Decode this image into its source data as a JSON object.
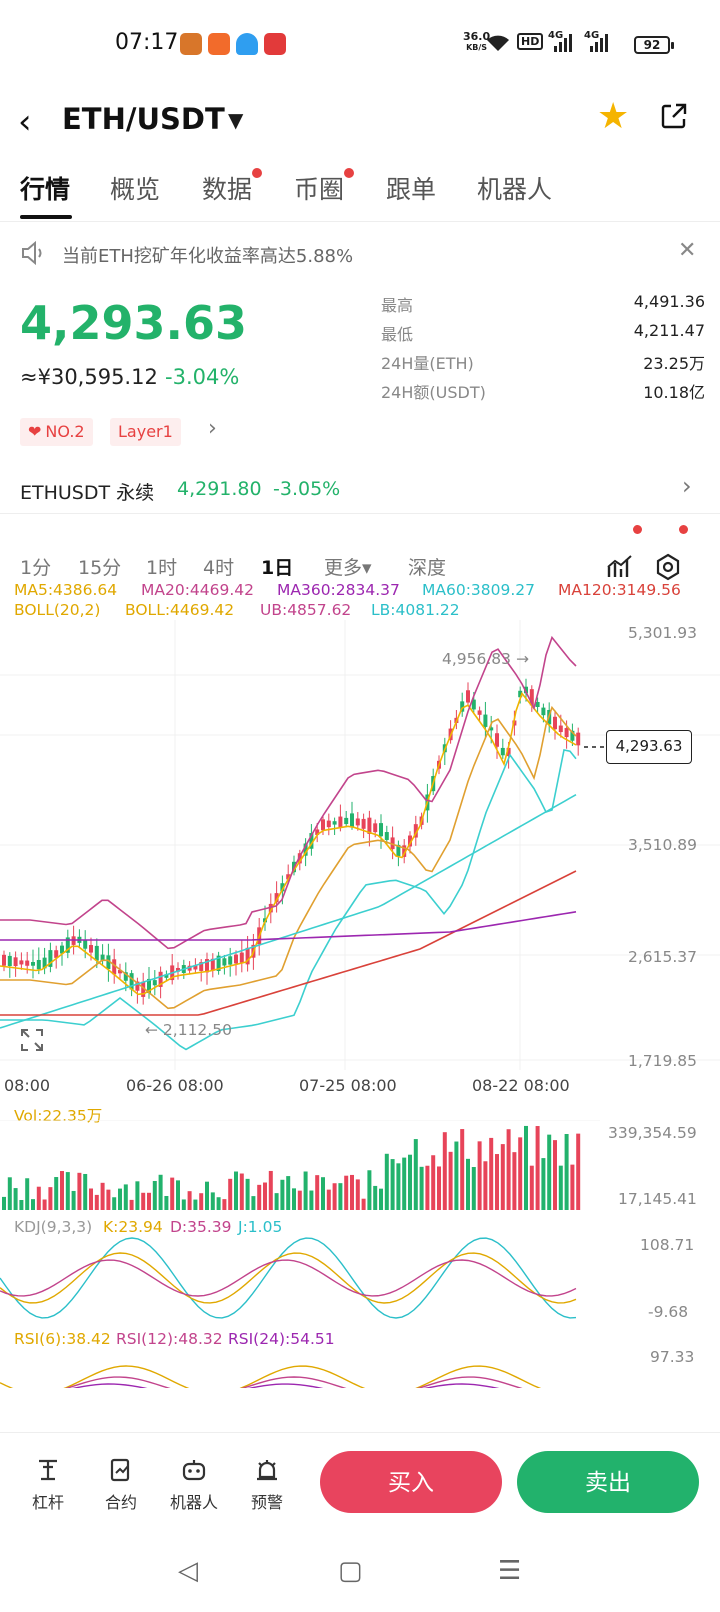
{
  "status_bar": {
    "time": "07:17",
    "net_speed": "36.0",
    "net_unit": "KB/S",
    "hd": "HD",
    "sig1": "4G",
    "sig2": "4G",
    "battery": "92"
  },
  "header": {
    "title": "ETH/USDT",
    "star_icon": "star-icon",
    "share_icon": "share-icon"
  },
  "tabs": [
    {
      "label": "行情",
      "active": true,
      "dot": false
    },
    {
      "label": "概览",
      "active": false,
      "dot": false
    },
    {
      "label": "数据",
      "active": false,
      "dot": true
    },
    {
      "label": "币圈",
      "active": false,
      "dot": true
    },
    {
      "label": "跟单",
      "active": false,
      "dot": false
    },
    {
      "label": "机器人",
      "active": false,
      "dot": false
    }
  ],
  "notice": {
    "text": "当前ETH挖矿年化收益率高达5.88%",
    "close": "✕"
  },
  "price": {
    "last": "4,293.63",
    "cny": "≈¥30,595.12",
    "change_pct": "-3.04%",
    "tags": [
      "NO.2",
      "Layer1"
    ]
  },
  "stats": [
    {
      "label": "最高",
      "value": "4,491.36"
    },
    {
      "label": "最低",
      "value": "4,211.47"
    },
    {
      "label": "24H量(ETH)",
      "value": "23.25万"
    },
    {
      "label": "24H额(USDT)",
      "value": "10.18亿"
    }
  ],
  "perpetual": {
    "name": "ETHUSDT 永续",
    "price": "4,291.80",
    "change": "-3.05%"
  },
  "periods": [
    {
      "label": "1分",
      "active": false
    },
    {
      "label": "15分",
      "active": false
    },
    {
      "label": "1时",
      "active": false
    },
    {
      "label": "4时",
      "active": false
    },
    {
      "label": "1日",
      "active": true
    },
    {
      "label": "更多▾",
      "active": false
    },
    {
      "label": "深度",
      "active": false
    }
  ],
  "indicators": {
    "ma5": "MA5:4386.64",
    "ma20": "MA20:4469.42",
    "ma360": "MA360:2834.37",
    "ma60": "MA60:3809.27",
    "ma120": "MA120:3149.56",
    "boll": "BOLL(20,2)",
    "boll_val": "BOLL:4469.42",
    "ub": "UB:4857.62",
    "lb": "LB:4081.22"
  },
  "chart_data": {
    "type": "candlestick",
    "y_axis_labels": [
      "5,301.93",
      "3,510.89",
      "2,615.37",
      "1,719.85"
    ],
    "x_axis_labels": [
      "08:00",
      "06-26 08:00",
      "07-25 08:00",
      "08-22 08:00"
    ],
    "high_marker": "4,956.83 →",
    "low_marker": "← 2,112.50",
    "last_price_label": "4,293.63",
    "colors": {
      "up": "#e74459",
      "down": "#22b26c",
      "ma5": "#f0b400",
      "ma20": "#e0a030",
      "ma360": "#9c27b0",
      "ma60": "#3ccfcf",
      "ma120": "#d9423a"
    }
  },
  "volume": {
    "label": "Vol:22.35万",
    "max": "339,354.59",
    "min": "17,145.41"
  },
  "kdj": {
    "label": "KDJ(9,3,3)",
    "k": "K:23.94",
    "d": "D:35.39",
    "j": "J:1.05",
    "max": "108.71",
    "min": "-9.68"
  },
  "rsi": {
    "r6": "RSI(6):38.42",
    "r12": "RSI(12):48.32",
    "r24": "RSI(24):54.51",
    "max": "97.33"
  },
  "bottom_bar": {
    "items": [
      "杠杆",
      "合约",
      "机器人",
      "预警"
    ],
    "buy": "买入",
    "sell": "卖出"
  },
  "nav": {
    "back": "◁",
    "home": "▢",
    "menu": "☰"
  }
}
